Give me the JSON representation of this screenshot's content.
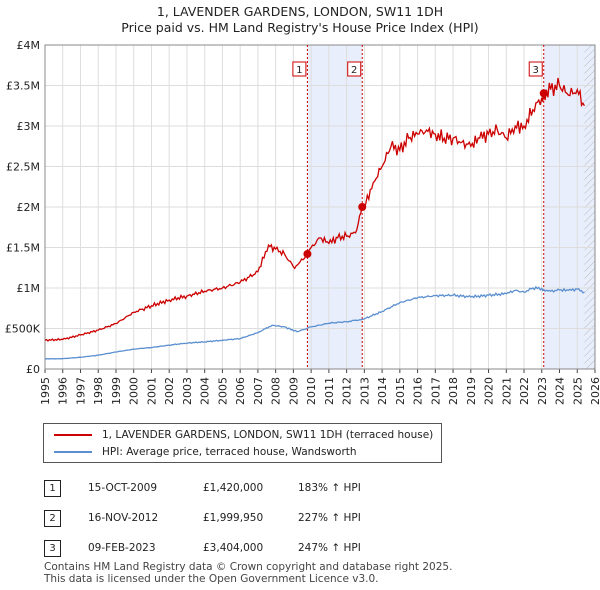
{
  "title": {
    "line1": "1, LAVENDER GARDENS, LONDON, SW11 1DH",
    "line2": "Price paid vs. HM Land Registry's House Price Index (HPI)"
  },
  "legend": {
    "property": "1, LAVENDER GARDENS, LONDON, SW11 1DH (terraced house)",
    "hpi": "HPI: Average price, terraced house, Wandsworth"
  },
  "sales": [
    {
      "num": "1",
      "date": "15-OCT-2009",
      "price": "£1,420,000",
      "hpi": "183% ↑ HPI"
    },
    {
      "num": "2",
      "date": "16-NOV-2012",
      "price": "£1,999,950",
      "hpi": "227% ↑ HPI"
    },
    {
      "num": "3",
      "date": "09-FEB-2023",
      "price": "£3,404,000",
      "hpi": "247% ↑ HPI"
    }
  ],
  "footer": {
    "line1": "Contains HM Land Registry data © Crown copyright and database right 2025.",
    "line2": "This data is licensed under the Open Government Licence v3.0."
  },
  "colors": {
    "property": "#cc0000",
    "hpi": "#5b8fd0",
    "shade": "#e8eefb",
    "grid": "#dddddd"
  },
  "chart_data": {
    "type": "line",
    "xlim": [
      1995,
      2026
    ],
    "ylim": [
      0,
      4000000
    ],
    "yticks": [
      {
        "v": 0,
        "label": "£0"
      },
      {
        "v": 500000,
        "label": "£500K"
      },
      {
        "v": 1000000,
        "label": "£1M"
      },
      {
        "v": 1500000,
        "label": "£1.5M"
      },
      {
        "v": 2000000,
        "label": "£2M"
      },
      {
        "v": 2500000,
        "label": "£2.5M"
      },
      {
        "v": 3000000,
        "label": "£3M"
      },
      {
        "v": 3500000,
        "label": "£3.5M"
      },
      {
        "v": 4000000,
        "label": "£4M"
      }
    ],
    "xticks": [
      "1995",
      "1996",
      "1997",
      "1998",
      "1999",
      "2000",
      "2001",
      "2002",
      "2003",
      "2004",
      "2005",
      "2006",
      "2007",
      "2008",
      "2009",
      "2010",
      "2011",
      "2012",
      "2013",
      "2014",
      "2015",
      "2016",
      "2017",
      "2018",
      "2019",
      "2020",
      "2021",
      "2022",
      "2023",
      "2024",
      "2025",
      "2026"
    ],
    "shaded_ranges": [
      [
        2009.79,
        2012.88
      ],
      [
        2023.11,
        2026
      ]
    ],
    "hatched_from": 2025.4,
    "series": [
      {
        "name": "1, LAVENDER GARDENS, LONDON, SW11 1DH (terraced house)",
        "key": "property",
        "x": [
          1995,
          1996,
          1997,
          1998,
          1999,
          2000,
          2000.5,
          2001,
          2002,
          2003,
          2004,
          2005,
          2006,
          2007,
          2007.6,
          2008,
          2008.5,
          2009,
          2009.3,
          2009.79,
          2010,
          2010.5,
          2011,
          2011.5,
          2012,
          2012.5,
          2012.88,
          2013,
          2013.5,
          2014,
          2014.5,
          2015,
          2015.5,
          2016,
          2016.5,
          2017,
          2017.5,
          2018,
          2018.5,
          2019,
          2019.5,
          2020,
          2020.5,
          2021,
          2021.5,
          2022,
          2022.5,
          2023,
          2023.11,
          2023.5,
          2024,
          2024.5,
          2025,
          2025.4
        ],
        "y": [
          355000,
          365000,
          420000,
          480000,
          560000,
          700000,
          740000,
          780000,
          850000,
          900000,
          960000,
          1000000,
          1070000,
          1200000,
          1530000,
          1480000,
          1420000,
          1260000,
          1300000,
          1420000,
          1500000,
          1620000,
          1550000,
          1620000,
          1640000,
          1680000,
          1999950,
          2000000,
          2300000,
          2500000,
          2750000,
          2700000,
          2850000,
          2900000,
          2950000,
          2900000,
          2850000,
          2850000,
          2800000,
          2750000,
          2850000,
          2900000,
          2950000,
          2850000,
          3000000,
          3000000,
          3200000,
          3350000,
          3404000,
          3450000,
          3500000,
          3380000,
          3450000,
          3250000
        ]
      },
      {
        "name": "HPI: Average price, terraced house, Wandsworth",
        "key": "hpi",
        "x": [
          1995,
          1996,
          1997,
          1998,
          1999,
          2000,
          2001,
          2002,
          2003,
          2004,
          2005,
          2006,
          2007,
          2007.8,
          2008.5,
          2009.2,
          2009.79,
          2010,
          2011,
          2012,
          2012.88,
          2013,
          2014,
          2015,
          2016,
          2017,
          2018,
          2019,
          2020,
          2021,
          2021.5,
          2022,
          2022.5,
          2023,
          2023.11,
          2023.5,
          2024,
          2024.5,
          2025,
          2025.4
        ],
        "y": [
          125000,
          127000,
          145000,
          170000,
          210000,
          245000,
          265000,
          295000,
          320000,
          335000,
          355000,
          375000,
          450000,
          540000,
          520000,
          460000,
          502000,
          520000,
          565000,
          585000,
          612000,
          620000,
          710000,
          820000,
          880000,
          905000,
          910000,
          890000,
          910000,
          930000,
          970000,
          950000,
          1000000,
          995000,
          981000,
          960000,
          975000,
          970000,
          985000,
          950000
        ]
      }
    ],
    "sales_markers": [
      {
        "label": "1",
        "x": 2009.79,
        "y": 1420000
      },
      {
        "label": "2",
        "x": 2012.88,
        "y": 1999950
      },
      {
        "label": "3",
        "x": 2023.11,
        "y": 3404000
      }
    ]
  }
}
